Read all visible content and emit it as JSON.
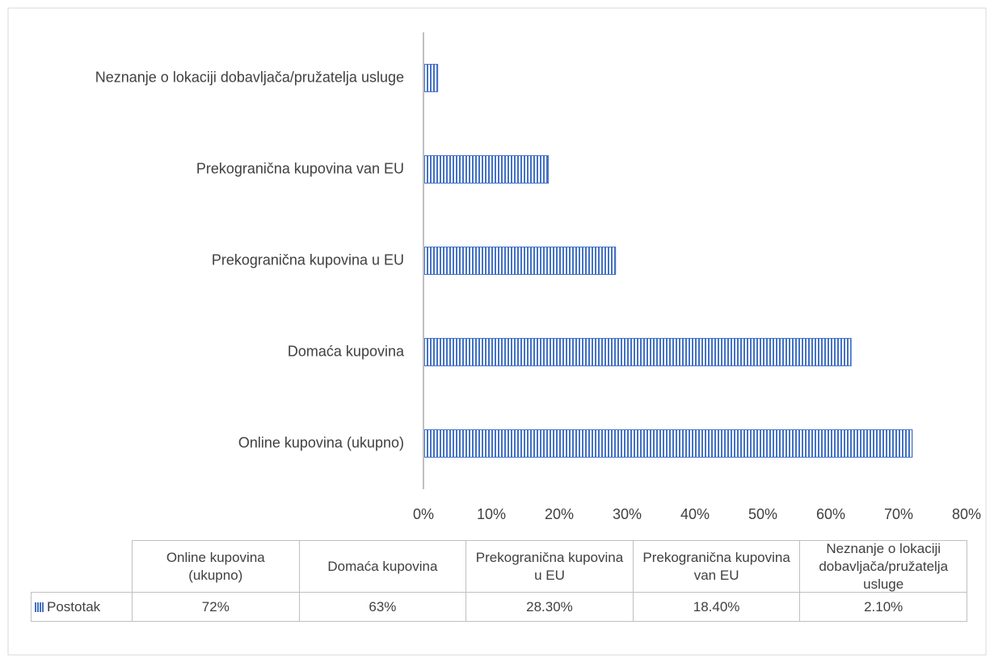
{
  "chart_data": {
    "type": "bar",
    "orientation": "horizontal",
    "categories": [
      "Online kupovina (ukupno)",
      "Domaća kupovina",
      "Prekogranična kupovina u EU",
      "Prekogranična kupovina van EU",
      "Neznanje o lokaciji dobavljača/pružatelja usluge"
    ],
    "series": [
      {
        "name": "Postotak",
        "color": "#4472c4",
        "values": [
          72,
          63,
          28.3,
          18.4,
          2.1
        ],
        "value_labels": [
          "72%",
          "63%",
          "28.30%",
          "18.40%",
          "2.10%"
        ]
      }
    ],
    "xlim": [
      0,
      80
    ],
    "xticks": [
      {
        "value": 0,
        "label": "0%"
      },
      {
        "value": 10,
        "label": "10%"
      },
      {
        "value": 20,
        "label": "20%"
      },
      {
        "value": 30,
        "label": "30%"
      },
      {
        "value": 40,
        "label": "40%"
      },
      {
        "value": 50,
        "label": "50%"
      },
      {
        "value": 60,
        "label": "60%"
      },
      {
        "value": 70,
        "label": "70%"
      },
      {
        "value": 80,
        "label": "80%"
      }
    ],
    "data_table": true
  }
}
